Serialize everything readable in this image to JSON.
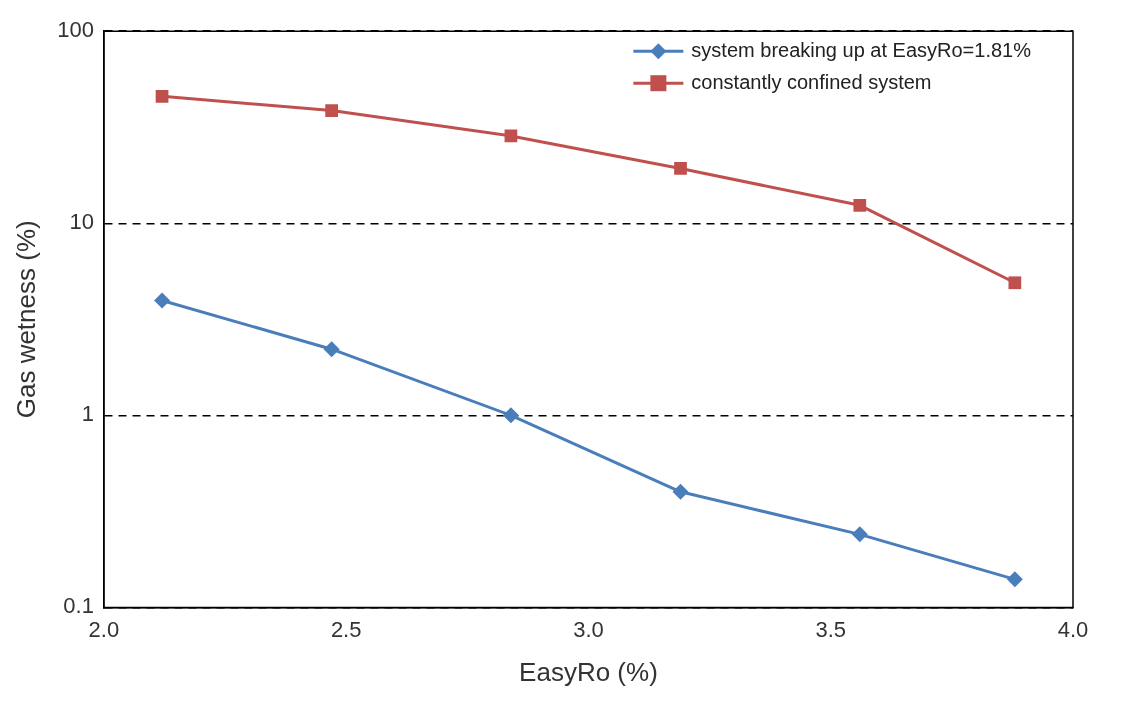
{
  "chart_data": {
    "type": "line",
    "xlabel": "EasyRo (%)",
    "ylabel": "Gas wetness (%)",
    "x": [
      2.12,
      2.47,
      2.84,
      3.19,
      3.56,
      3.88
    ],
    "series": [
      {
        "name": "system breaking up at EasyRo=1.81%",
        "color": "#4a7ebb",
        "marker": "diamond",
        "values": [
          3.96,
          2.21,
          1.0,
          0.4,
          0.24,
          0.14
        ]
      },
      {
        "name": "constantly confined system",
        "color": "#c0504d",
        "marker": "square",
        "values": [
          45.8,
          38.6,
          28.5,
          19.3,
          12.4,
          4.9
        ]
      }
    ],
    "xlim": [
      2,
      4
    ],
    "xticks": [
      {
        "value": 2,
        "label": "2.0"
      },
      {
        "value": 2.5,
        "label": "2.5"
      },
      {
        "value": 3,
        "label": "3.0"
      },
      {
        "value": 3.5,
        "label": "3.5"
      },
      {
        "value": 4,
        "label": "4.0"
      }
    ],
    "ylim": [
      0.1,
      100
    ],
    "yticks": [
      0.1,
      1,
      10,
      100
    ],
    "log": "y",
    "grid": "y",
    "legend": "top right",
    "line_style": "solid"
  }
}
